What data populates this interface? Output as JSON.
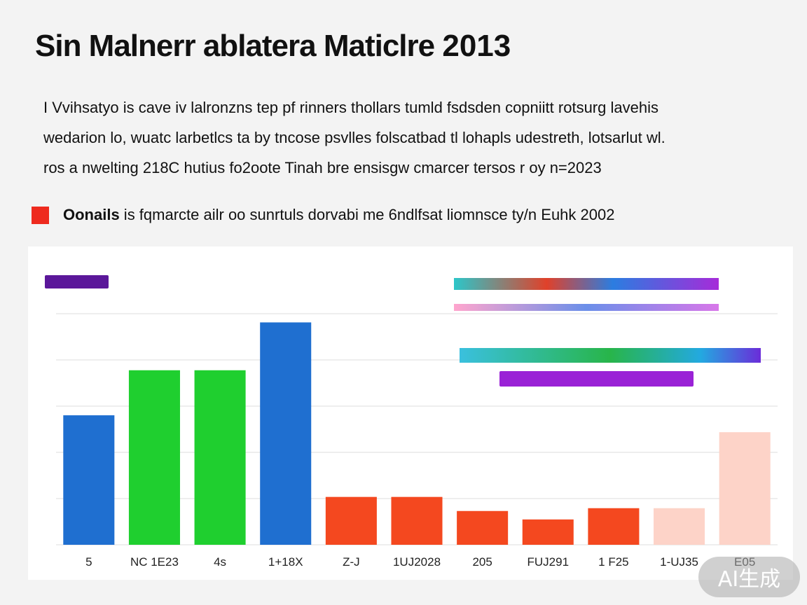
{
  "header": {
    "title": "Sin Malnerr ablatera Maticlre",
    "title_year": "2013"
  },
  "intro": {
    "lines": [
      "I Vvihsatyo is cave iv lalronzns tep pf rinners thollars tumld fsdsden copniitt rotsurg lavehis",
      "wedarion lo, wuatc larbetlcs ta by tncose psvlles folscatbad tl lohapls udestreth, lotsarlut wl.",
      "ros a nwelting 218C hutius fo2oote Tinah bre ensisgw cmarcer tersos r oy n=2023"
    ]
  },
  "legend": {
    "swatch_color": "#ee2a1e",
    "bold": "Oonails",
    "rest": " is fqmarcte ailr  oo sunrtuls dorvabi me 6ndlfsat liomnsce ty/n Euhk 2002"
  },
  "colors": {
    "blue": "#1f6fd0",
    "green": "#1fcf2f",
    "red": "#f4481f",
    "peach": "#fdd3c8",
    "purple": "#5b179a"
  },
  "chart_data": {
    "type": "bar",
    "title": "",
    "ylim": [
      0,
      100
    ],
    "grid": true,
    "categories": [
      "5",
      "NC 1E23",
      "4s",
      "1+18X",
      "Z-J",
      "1UJ2028",
      "205",
      "FUJ291",
      "1 F25",
      "1-UJ35",
      "E05"
    ],
    "bars": [
      {
        "category": "5",
        "value": 46,
        "color": "#1f6fd0"
      },
      {
        "category": "NC 1E23",
        "value": 62,
        "color": "#1fcf2f"
      },
      {
        "category": "4s",
        "value": 62,
        "color": "#1fcf2f"
      },
      {
        "category": "1+18X",
        "value": 79,
        "color": "#1f6fd0"
      },
      {
        "category": "Z-J",
        "value": 17,
        "color": "#f4481f"
      },
      {
        "category": "1UJ2028",
        "value": 17,
        "color": "#f4481f"
      },
      {
        "category": "205",
        "value": 12,
        "color": "#f4481f"
      },
      {
        "category": "FUJ291",
        "value": 9,
        "color": "#f4481f"
      },
      {
        "category": "1 F25",
        "value": 13,
        "color": "#f4481f"
      },
      {
        "category": "1-UJ35",
        "value": 13,
        "color": "#fdd3c8"
      },
      {
        "category": "E05",
        "value": 40,
        "color": "#fdd3c8"
      }
    ],
    "legend_placement": "top-right"
  },
  "watermark": "AI生成"
}
